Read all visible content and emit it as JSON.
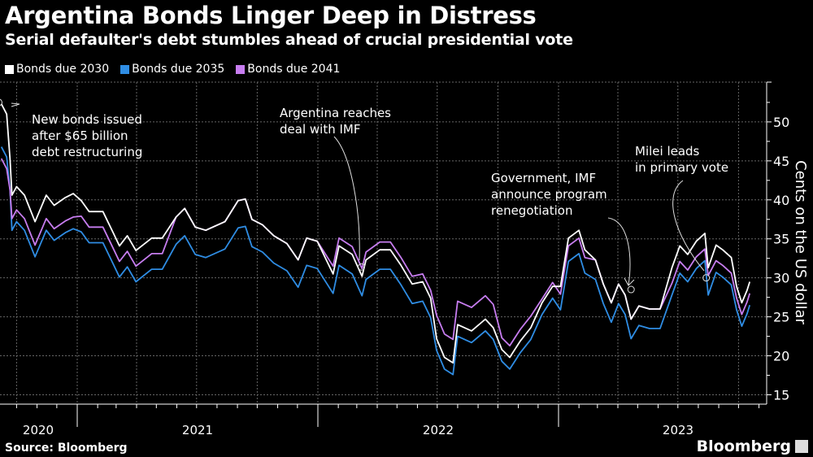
{
  "header": {
    "title": "Argentina Bonds Linger Deep in Distress",
    "subtitle": "Serial defaulter's debt stumbles ahead of crucial presidential vote"
  },
  "footer": {
    "source": "Source: Bloomberg",
    "logo": "Bloomberg"
  },
  "chart_data": {
    "type": "line",
    "title": "Argentina Bonds Linger Deep in Distress",
    "subtitle": "Serial defaulter's debt stumbles ahead of crucial presidential vote",
    "ylabel": "Cents on the US dollar",
    "xlabel": "",
    "ylim": [
      13.8,
      55.1
    ],
    "y_ticks": [
      15,
      20,
      25,
      30,
      35,
      40,
      45,
      50
    ],
    "x_tick_labels": [
      "2020",
      "2021",
      "2022",
      "2023"
    ],
    "y_axis_side": "right",
    "grid": true,
    "legend_position": "top-left",
    "x": [
      "2020-09-08",
      "2020-09-16",
      "2020-09-21",
      "2020-09-24",
      "2020-10-01",
      "2020-10-13",
      "2020-10-29",
      "2020-11-15",
      "2020-11-27",
      "2020-12-14",
      "2020-12-26",
      "2021-01-07",
      "2021-01-19",
      "2021-02-09",
      "2021-02-25",
      "2021-03-06",
      "2021-03-18",
      "2021-03-31",
      "2021-04-24",
      "2021-05-10",
      "2021-05-31",
      "2021-06-13",
      "2021-06-29",
      "2021-07-15",
      "2021-08-13",
      "2021-09-02",
      "2021-09-13",
      "2021-09-23",
      "2021-10-09",
      "2021-10-26",
      "2021-11-15",
      "2021-12-02",
      "2021-12-15",
      "2021-12-31",
      "2022-01-24",
      "2022-02-02",
      "2022-02-22",
      "2022-03-09",
      "2022-03-15",
      "2022-04-05",
      "2022-04-21",
      "2022-05-07",
      "2022-05-24",
      "2022-06-09",
      "2022-06-21",
      "2022-06-30",
      "2022-07-12",
      "2022-07-25",
      "2022-08-01",
      "2022-08-22",
      "2022-09-12",
      "2022-09-24",
      "2022-10-07",
      "2022-10-19",
      "2022-11-04",
      "2022-11-20",
      "2022-12-07",
      "2022-12-23",
      "2023-01-04",
      "2023-01-16",
      "2023-02-01",
      "2023-02-10",
      "2023-02-26",
      "2023-03-10",
      "2023-03-22",
      "2023-04-02",
      "2023-04-12",
      "2023-04-21",
      "2023-05-03",
      "2023-05-19",
      "2023-06-04",
      "2023-06-22",
      "2023-07-04",
      "2023-07-16",
      "2023-07-29",
      "2023-08-11",
      "2023-08-16",
      "2023-08-28",
      "2023-09-07",
      "2023-09-20",
      "2023-09-28",
      "2023-10-06",
      "2023-10-14",
      "2023-10-18"
    ],
    "series": [
      {
        "name": "Bonds due 2030",
        "color": "#ffffff",
        "values": [
          52.3,
          51.0,
          45.3,
          40.6,
          41.7,
          40.6,
          37.2,
          40.6,
          39.3,
          40.3,
          40.8,
          39.9,
          38.5,
          38.5,
          35.7,
          34.1,
          35.4,
          33.5,
          35.1,
          35.1,
          37.8,
          38.9,
          36.5,
          36.1,
          37.2,
          39.9,
          40.1,
          37.5,
          36.8,
          35.4,
          34.4,
          32.3,
          35.1,
          34.7,
          30.5,
          34.1,
          33.0,
          30.2,
          32.3,
          33.6,
          33.6,
          31.6,
          29.2,
          29.5,
          27.4,
          22.2,
          19.8,
          19.1,
          24.0,
          23.2,
          24.7,
          23.6,
          20.8,
          19.8,
          21.9,
          23.6,
          26.8,
          28.9,
          28.9,
          35.1,
          36.1,
          33.6,
          32.3,
          29.2,
          26.8,
          29.2,
          27.8,
          24.7,
          26.4,
          26.0,
          26.0,
          31.3,
          34.1,
          33.0,
          34.7,
          35.7,
          31.3,
          34.2,
          33.6,
          32.6,
          28.9,
          26.8,
          28.4,
          29.5
        ]
      },
      {
        "name": "Bonds due 2035",
        "color": "#2f8de4",
        "values": [
          46.8,
          45.5,
          41.3,
          36.1,
          37.2,
          36.1,
          32.7,
          36.1,
          34.8,
          35.8,
          36.3,
          35.9,
          34.5,
          34.5,
          31.7,
          30.1,
          31.4,
          29.5,
          31.1,
          31.1,
          34.3,
          35.4,
          33.0,
          32.6,
          33.7,
          36.4,
          36.6,
          34.0,
          33.3,
          31.9,
          30.9,
          28.8,
          31.6,
          31.2,
          28.0,
          31.6,
          30.5,
          27.7,
          29.8,
          31.1,
          31.1,
          29.1,
          26.7,
          27.0,
          24.9,
          20.7,
          18.3,
          17.6,
          22.5,
          21.7,
          23.2,
          22.1,
          19.3,
          18.3,
          20.4,
          22.1,
          25.3,
          27.4,
          25.9,
          32.1,
          33.1,
          30.6,
          29.8,
          26.7,
          24.3,
          26.7,
          25.3,
          22.2,
          23.9,
          23.5,
          23.5,
          27.8,
          30.6,
          29.5,
          31.2,
          32.2,
          27.8,
          30.7,
          30.1,
          29.1,
          25.9,
          23.8,
          25.4,
          26.5
        ]
      },
      {
        "name": "Bonds due 2041",
        "color": "#c77df0",
        "values": [
          45.3,
          44.0,
          41.3,
          37.6,
          38.7,
          37.6,
          34.2,
          37.6,
          36.3,
          37.3,
          37.8,
          37.9,
          36.5,
          36.5,
          33.7,
          32.1,
          33.4,
          31.5,
          33.1,
          33.1,
          37.8,
          38.9,
          36.5,
          36.1,
          37.2,
          39.9,
          40.1,
          37.5,
          36.8,
          35.4,
          34.4,
          32.3,
          35.1,
          34.7,
          31.5,
          35.1,
          34.0,
          31.2,
          33.3,
          34.6,
          34.6,
          32.6,
          30.2,
          30.5,
          28.4,
          25.2,
          22.8,
          22.1,
          27.0,
          26.2,
          27.7,
          26.6,
          22.3,
          21.3,
          23.4,
          25.1,
          27.3,
          29.4,
          27.9,
          34.1,
          35.1,
          32.6,
          32.3,
          29.2,
          26.8,
          29.2,
          27.8,
          24.7,
          26.4,
          26.0,
          26.0,
          29.3,
          32.1,
          31.0,
          32.7,
          33.7,
          30.3,
          32.2,
          31.6,
          30.6,
          27.4,
          25.3,
          26.9,
          28.0
        ]
      }
    ],
    "annotations": [
      {
        "text": [
          "New bonds issued",
          "after $65 billion",
          "debt restructuring"
        ],
        "date": "2020-09-04",
        "value": 52.5
      },
      {
        "text": [
          "Argentina reaches",
          "deal with IMF"
        ],
        "date": "2022-03-08",
        "value": 31.4
      },
      {
        "text": [
          "Government, IMF",
          "announce program",
          "renegotiation"
        ],
        "date": "2023-04-21",
        "value": 28.5
      },
      {
        "text": [
          "Milei leads",
          "in primary vote"
        ],
        "date": "2023-08-13",
        "value": 30.0
      }
    ]
  }
}
